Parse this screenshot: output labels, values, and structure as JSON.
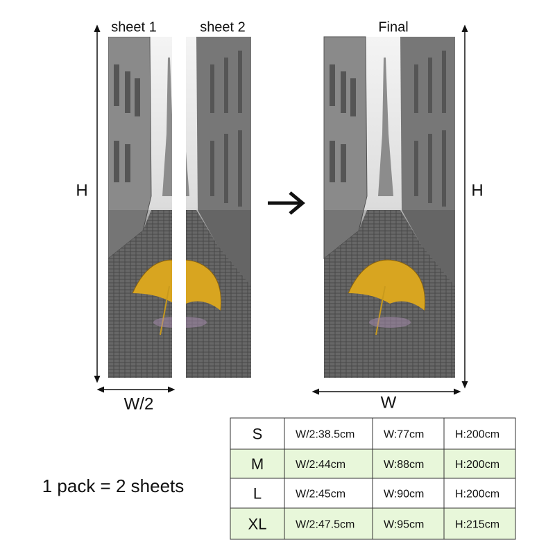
{
  "labels": {
    "sheet_1": "sheet 1",
    "sheet_2": "sheet 2",
    "final": "Final",
    "height_left": "H",
    "height_right": "H",
    "half_width": "W/2",
    "width": "W"
  },
  "pack_note": "1 pack = 2 sheets",
  "size_table": {
    "rows": [
      [
        "S",
        "W/2:38.5cm",
        "W:77cm",
        "H:200cm"
      ],
      [
        "M",
        "W/2:44cm",
        "W:88cm",
        "H:200cm"
      ],
      [
        "L",
        "W/2:45cm",
        "W:90cm",
        "H:200cm"
      ],
      [
        "XL",
        "W/2:47.5cm",
        "W:95cm",
        "H:215cm"
      ]
    ]
  }
}
